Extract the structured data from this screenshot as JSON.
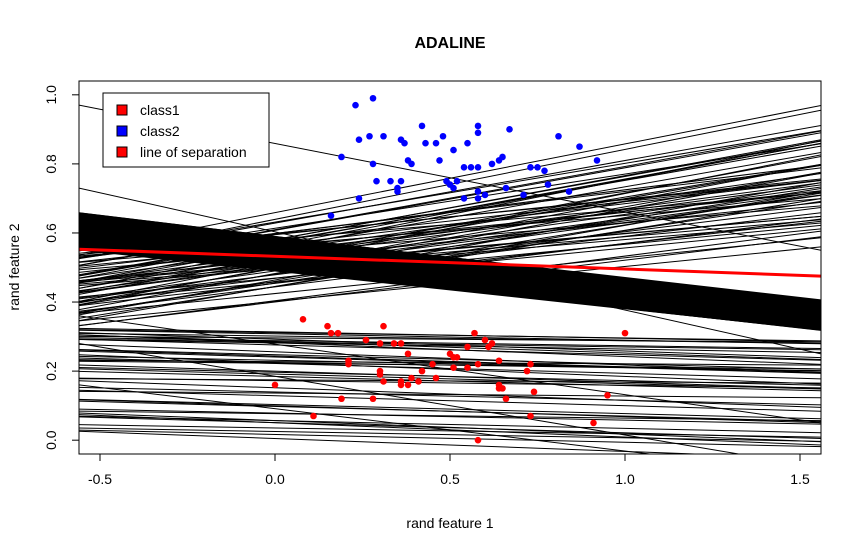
{
  "chart_data": {
    "type": "scatter",
    "title": "ADALINE",
    "xlabel": "rand feature 1",
    "ylabel": "rand feature 2",
    "xlim": [
      -0.56,
      1.56
    ],
    "ylim": [
      -0.04,
      1.04
    ],
    "x_ticks": [
      -0.5,
      0.0,
      0.5,
      1.0,
      1.5
    ],
    "x_tick_labels": [
      "-0.5",
      "0.0",
      "0.5",
      "1.0",
      "1.5"
    ],
    "y_ticks": [
      0.0,
      0.2,
      0.4,
      0.6,
      0.8,
      1.0
    ],
    "y_tick_labels": [
      "0.0",
      "0.2",
      "0.4",
      "0.6",
      "0.8",
      "1.0"
    ],
    "grid": false,
    "legend": {
      "placement": "top-left",
      "entries": [
        {
          "label": "class1",
          "color": "#ff0000"
        },
        {
          "label": "class2",
          "color": "#0000ff"
        },
        {
          "label": "line of separation",
          "color": "#ff0000"
        }
      ]
    },
    "series": [
      {
        "color": "#0000ff",
        "points": [
          [
            0.23,
            0.97
          ],
          [
            0.28,
            0.99
          ],
          [
            0.19,
            0.82
          ],
          [
            0.24,
            0.87
          ],
          [
            0.27,
            0.88
          ],
          [
            0.31,
            0.88
          ],
          [
            0.36,
            0.87
          ],
          [
            0.37,
            0.86
          ],
          [
            0.42,
            0.91
          ],
          [
            0.43,
            0.86
          ],
          [
            0.46,
            0.86
          ],
          [
            0.48,
            0.88
          ],
          [
            0.51,
            0.84
          ],
          [
            0.55,
            0.86
          ],
          [
            0.58,
            0.91
          ],
          [
            0.58,
            0.89
          ],
          [
            0.67,
            0.9
          ],
          [
            0.81,
            0.88
          ],
          [
            0.87,
            0.85
          ],
          [
            0.92,
            0.81
          ],
          [
            0.28,
            0.8
          ],
          [
            0.38,
            0.81
          ],
          [
            0.39,
            0.8
          ],
          [
            0.47,
            0.81
          ],
          [
            0.56,
            0.79
          ],
          [
            0.54,
            0.79
          ],
          [
            0.58,
            0.79
          ],
          [
            0.62,
            0.8
          ],
          [
            0.64,
            0.81
          ],
          [
            0.65,
            0.82
          ],
          [
            0.29,
            0.75
          ],
          [
            0.33,
            0.75
          ],
          [
            0.35,
            0.73
          ],
          [
            0.36,
            0.75
          ],
          [
            0.35,
            0.72
          ],
          [
            0.49,
            0.75
          ],
          [
            0.5,
            0.74
          ],
          [
            0.52,
            0.75
          ],
          [
            0.58,
            0.72
          ],
          [
            0.6,
            0.71
          ],
          [
            0.66,
            0.73
          ],
          [
            0.71,
            0.71
          ],
          [
            0.73,
            0.79
          ],
          [
            0.75,
            0.79
          ],
          [
            0.77,
            0.78
          ],
          [
            0.78,
            0.74
          ],
          [
            0.84,
            0.72
          ],
          [
            0.24,
            0.7
          ],
          [
            0.54,
            0.7
          ],
          [
            0.16,
            0.65
          ],
          [
            0.58,
            0.7
          ],
          [
            0.51,
            0.73
          ]
        ]
      },
      {
        "color": "#ff0000",
        "points": [
          [
            0.08,
            0.35
          ],
          [
            0.15,
            0.33
          ],
          [
            0.16,
            0.31
          ],
          [
            0.18,
            0.31
          ],
          [
            0.21,
            0.23
          ],
          [
            0.21,
            0.22
          ],
          [
            0.26,
            0.29
          ],
          [
            0.3,
            0.28
          ],
          [
            0.31,
            0.33
          ],
          [
            0.34,
            0.28
          ],
          [
            0.36,
            0.28
          ],
          [
            0.38,
            0.25
          ],
          [
            0.3,
            0.2
          ],
          [
            0.3,
            0.19
          ],
          [
            0.31,
            0.17
          ],
          [
            0.36,
            0.17
          ],
          [
            0.36,
            0.16
          ],
          [
            0.38,
            0.16
          ],
          [
            0.39,
            0.18
          ],
          [
            0.41,
            0.17
          ],
          [
            0.42,
            0.2
          ],
          [
            0.45,
            0.22
          ],
          [
            0.46,
            0.18
          ],
          [
            0.5,
            0.25
          ],
          [
            0.51,
            0.24
          ],
          [
            0.51,
            0.21
          ],
          [
            0.52,
            0.24
          ],
          [
            0.55,
            0.21
          ],
          [
            0.55,
            0.27
          ],
          [
            0.57,
            0.31
          ],
          [
            0.58,
            0.22
          ],
          [
            0.6,
            0.29
          ],
          [
            0.61,
            0.27
          ],
          [
            0.62,
            0.28
          ],
          [
            0.64,
            0.23
          ],
          [
            0.64,
            0.16
          ],
          [
            0.64,
            0.15
          ],
          [
            0.65,
            0.15
          ],
          [
            0.66,
            0.12
          ],
          [
            0.72,
            0.2
          ],
          [
            0.73,
            0.22
          ],
          [
            0.74,
            0.14
          ],
          [
            0.73,
            0.07
          ],
          [
            0.91,
            0.05
          ],
          [
            0.95,
            0.13
          ],
          [
            1.0,
            0.31
          ],
          [
            0.0,
            0.16
          ],
          [
            0.11,
            0.07
          ],
          [
            0.19,
            0.12
          ],
          [
            0.28,
            0.12
          ],
          [
            0.58,
            0.0
          ]
        ]
      }
    ],
    "separation_line": {
      "color": "#ff0000",
      "x": [
        -0.56,
        1.56
      ],
      "y": [
        0.553,
        0.475
      ]
    },
    "history_lines": {
      "color": "#000000"
    }
  }
}
